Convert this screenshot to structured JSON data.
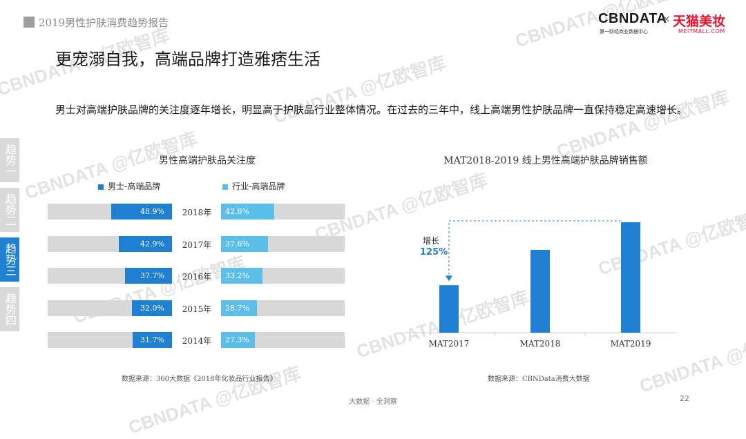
{
  "header": {
    "report_title": "2019男性护肤消费趋势报告",
    "logo_cbn": "CBNDATA",
    "logo_cbn_sub": "第一财经商业数据中心",
    "logo_x": "×",
    "logo_tmall": "天猫美妆",
    "logo_tmall_sub": "MEITMALL.COM"
  },
  "page": {
    "heading": "更宠溺自我，高端品牌打造雅痞生活",
    "description": "男士对高端护肤品牌的关注度逐年增长，明显高于护肤品行业整体情况。在过去的三年中，线上高端男性护肤品牌一直保持稳定高速增长。",
    "footer_center": "大数据 · 全洞察",
    "page_number": "22"
  },
  "side_tabs": [
    {
      "label": "趋势一",
      "active": false
    },
    {
      "label": "趋势二",
      "active": false
    },
    {
      "label": "趋势三",
      "active": true
    },
    {
      "label": "趋势四",
      "active": false
    }
  ],
  "colors": {
    "dark_blue": "#1f7fd1",
    "light_blue": "#5bbfea",
    "grey_track": "#d8d8d8",
    "tab_inactive": "#d9d9d9",
    "tab_active": "#1f7fd1",
    "accent_blue": "#1f7fd1"
  },
  "watermark": {
    "text": "CBNDATA @亿欧智库"
  },
  "chart_data": [
    {
      "type": "bar",
      "title": "男性高端护肤品关注度",
      "categories": [
        "2018年",
        "2017年",
        "2016年",
        "2015年",
        "2014年"
      ],
      "series": [
        {
          "name": "男士-高端品牌",
          "values": [
            48.9,
            42.9,
            37.7,
            32.0,
            31.7
          ],
          "labels": [
            "48.9%",
            "42.9%",
            "37.7%",
            "32.0%",
            "31.7%"
          ]
        },
        {
          "name": "行业-高端品牌",
          "values": [
            42.8,
            37.6,
            33.2,
            28.7,
            27.3
          ],
          "labels": [
            "42.8%",
            "37.6%",
            "33.2%",
            "28.7%",
            "27.3%"
          ]
        }
      ],
      "source": "数据来源：360大数据《2018年化妆品行业报告》"
    },
    {
      "type": "bar",
      "title": "MAT2018-2019 线上男性高端护肤品牌销售额",
      "categories": [
        "MAT2017",
        "MAT2018",
        "MAT2019"
      ],
      "values": [
        0.43,
        0.75,
        1.0
      ],
      "annotation": {
        "label": "增长",
        "value": "125%"
      },
      "source": "数据来源：CBNData消费大数据"
    }
  ]
}
